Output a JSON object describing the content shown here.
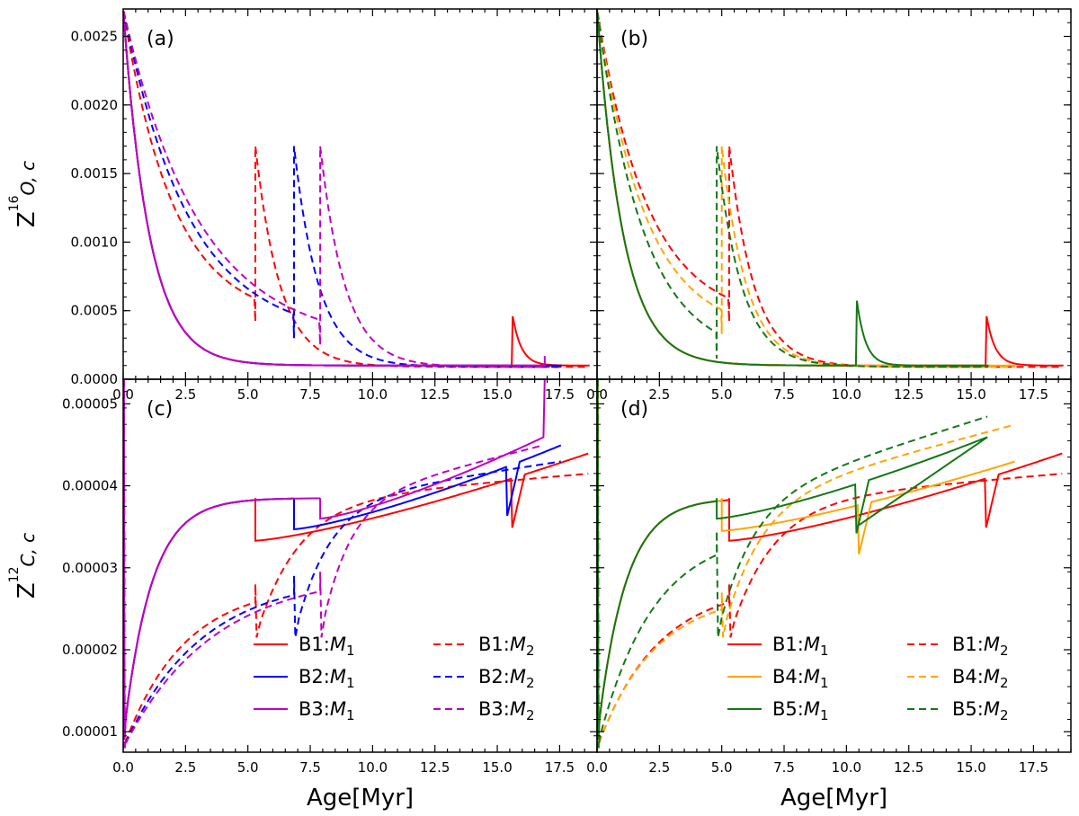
{
  "chart_data": [
    {
      "id": "a",
      "type": "line",
      "panel_label": "(a)",
      "ylabel": "Z_16O,c",
      "ylabel_display": {
        "base": "Z",
        "sup": "16",
        "sub": "O, c"
      },
      "xlabel": "",
      "xlim": [
        0,
        19.0
      ],
      "ylim": [
        0,
        0.0027
      ],
      "xticks": [
        "0.0",
        "2.5",
        "5.0",
        "7.5",
        "10.0",
        "12.5",
        "15.0",
        "17.5"
      ],
      "yticks": [
        "0.0000",
        "0.0005",
        "0.0010",
        "0.0015",
        "0.0020",
        "0.0025"
      ],
      "series": [
        {
          "name": "B1:M1",
          "color": "#ff0000",
          "dash": false,
          "kind": "o1",
          "end": 18.7,
          "bump_t": 15.6,
          "bump_h": 0.00048
        },
        {
          "name": "B1:M2",
          "color": "#ff0000",
          "dash": true,
          "kind": "o2",
          "t": 5.3,
          "end": 18.7,
          "pre": 0.00042
        },
        {
          "name": "B2:M1",
          "color": "#0000ff",
          "dash": false,
          "kind": "o1",
          "end": 17.6
        },
        {
          "name": "B2:M2",
          "color": "#0000ff",
          "dash": true,
          "kind": "o2",
          "t": 6.85,
          "end": 17.6,
          "pre": 0.0003
        },
        {
          "name": "B3:M1",
          "color": "#bf00bf",
          "dash": false,
          "kind": "o1",
          "end": 16.9,
          "spike_t": 16.9,
          "spike_h": 0.00017
        },
        {
          "name": "B3:M2",
          "color": "#bf00bf",
          "dash": true,
          "kind": "o2",
          "t": 7.9,
          "end": 16.9,
          "pre": 0.00025
        }
      ]
    },
    {
      "id": "b",
      "type": "line",
      "panel_label": "(b)",
      "ylabel": "",
      "xlabel": "",
      "xlim": [
        0,
        19.0
      ],
      "ylim": [
        0,
        0.0027
      ],
      "xticks": [
        "0.0",
        "2.5",
        "5.0",
        "7.5",
        "10.0",
        "12.5",
        "15.0",
        "17.5"
      ],
      "yticks": [],
      "series": [
        {
          "name": "B1:M1",
          "color": "#ff0000",
          "dash": false,
          "kind": "o1",
          "end": 18.7,
          "bump_t": 15.6,
          "bump_h": 0.00048
        },
        {
          "name": "B1:M2",
          "color": "#ff0000",
          "dash": true,
          "kind": "o2",
          "t": 5.3,
          "end": 18.7,
          "pre": 0.00042
        },
        {
          "name": "B4:M1",
          "color": "#ffa500",
          "dash": false,
          "kind": "o1",
          "end": 16.8
        },
        {
          "name": "B4:M2",
          "color": "#ffa500",
          "dash": true,
          "kind": "o2",
          "t": 5.0,
          "end": 16.8,
          "pre": 0.00033
        },
        {
          "name": "B5:M1",
          "color": "#147814",
          "dash": false,
          "kind": "o1",
          "end": 15.7,
          "bump_t": 10.4,
          "bump_h": 0.0006
        },
        {
          "name": "B5:M2",
          "color": "#147814",
          "dash": true,
          "kind": "o2",
          "t": 4.8,
          "end": 15.7,
          "pre": 0.00015
        }
      ]
    },
    {
      "id": "c",
      "type": "line",
      "panel_label": "(c)",
      "ylabel": "Z_12C,c",
      "ylabel_display": {
        "base": "Z",
        "sup": "12",
        "sub": "C, c"
      },
      "xlabel": "Age[Myr]",
      "xlim": [
        0,
        19.0
      ],
      "ylim": [
        7.5e-06,
        5.3e-05
      ],
      "xticks": [
        "0.0",
        "2.5",
        "5.0",
        "7.5",
        "10.0",
        "12.5",
        "15.0",
        "17.5"
      ],
      "yticks": [
        "0.00001",
        "0.00002",
        "0.00003",
        "0.00004",
        "0.00005"
      ],
      "series": [
        {
          "name": "B1:M1",
          "color": "#ff0000",
          "dash": false,
          "kind": "c1",
          "t": 5.3,
          "end": 18.7,
          "plateau": 3.33e-05,
          "jump": 10.2,
          "jumpv": 3.5e-05,
          "late": 15.6,
          "endv": 4.4e-05
        },
        {
          "name": "B1:M2",
          "color": "#ff0000",
          "dash": true,
          "kind": "c2",
          "t": 5.3,
          "end": 18.7,
          "pre": 2.8e-05,
          "endv": 4.15e-05
        },
        {
          "name": "B2:M1",
          "color": "#0000ff",
          "dash": false,
          "kind": "c1",
          "t": 6.85,
          "end": 17.6,
          "plateau": 3.47e-05,
          "late": 15.4,
          "endv": 4.5e-05
        },
        {
          "name": "B2:M2",
          "color": "#0000ff",
          "dash": true,
          "kind": "c2",
          "t": 6.85,
          "end": 17.6,
          "pre": 2.9e-05,
          "endv": 4.3e-05
        },
        {
          "name": "B3:M1",
          "color": "#bf00bf",
          "dash": false,
          "kind": "c1",
          "t": 7.9,
          "end": 16.9,
          "plateau": 3.6e-05,
          "endv": 4.6e-05,
          "spike_end": 5.3e-05
        },
        {
          "name": "B3:M2",
          "color": "#bf00bf",
          "dash": true,
          "kind": "c2",
          "t": 7.9,
          "end": 16.9,
          "pre": 2.95e-05,
          "endv": 4.5e-05
        }
      ],
      "legend": {
        "placement": "lower-right",
        "entries": [
          {
            "prefix": "B1:",
            "var": "M",
            "sub": "1",
            "color": "#ff0000",
            "dash": false
          },
          {
            "prefix": "B1:",
            "var": "M",
            "sub": "2",
            "color": "#ff0000",
            "dash": true
          },
          {
            "prefix": "B2:",
            "var": "M",
            "sub": "1",
            "color": "#0000ff",
            "dash": false
          },
          {
            "prefix": "B2:",
            "var": "M",
            "sub": "2",
            "color": "#0000ff",
            "dash": true
          },
          {
            "prefix": "B3:",
            "var": "M",
            "sub": "1",
            "color": "#bf00bf",
            "dash": false
          },
          {
            "prefix": "B3:",
            "var": "M",
            "sub": "2",
            "color": "#bf00bf",
            "dash": true
          }
        ]
      }
    },
    {
      "id": "d",
      "type": "line",
      "panel_label": "(d)",
      "ylabel": "",
      "xlabel": "Age[Myr]",
      "xlim": [
        0,
        19.0
      ],
      "ylim": [
        7.5e-06,
        5.3e-05
      ],
      "xticks": [
        "0.0",
        "2.5",
        "5.0",
        "7.5",
        "10.0",
        "12.5",
        "15.0",
        "17.5"
      ],
      "yticks": [],
      "series": [
        {
          "name": "B1:M1",
          "color": "#ff0000",
          "dash": false,
          "kind": "c1",
          "t": 5.3,
          "end": 18.7,
          "plateau": 3.33e-05,
          "late": 15.6,
          "endv": 4.4e-05
        },
        {
          "name": "B1:M2",
          "color": "#ff0000",
          "dash": true,
          "kind": "c2",
          "t": 5.3,
          "end": 18.7,
          "pre": 2.8e-05,
          "endv": 4.15e-05
        },
        {
          "name": "B4:M1",
          "color": "#ffa500",
          "dash": false,
          "kind": "c1",
          "t": 5.0,
          "end": 16.8,
          "plateau": 3.45e-05,
          "late": 10.5,
          "endv": 4.3e-05
        },
        {
          "name": "B4:M2",
          "color": "#ffa500",
          "dash": true,
          "kind": "c2",
          "t": 5.0,
          "end": 16.8,
          "pre": 2.7e-05,
          "endv": 4.75e-05
        },
        {
          "name": "B5:M1",
          "color": "#147814",
          "dash": false,
          "kind": "c1",
          "t": 4.8,
          "end": 15.7,
          "plateau": 3.6e-05,
          "late": 10.4,
          "endv": 4.6e-05,
          "spike_mid": 10.4
        },
        {
          "name": "B5:M2",
          "color": "#147814",
          "dash": true,
          "kind": "c2",
          "t": 4.8,
          "end": 15.7,
          "pre": 3.45e-05,
          "endv": 4.85e-05
        }
      ],
      "legend": {
        "placement": "lower-right",
        "entries": [
          {
            "prefix": "B1:",
            "var": "M",
            "sub": "1",
            "color": "#ff0000",
            "dash": false
          },
          {
            "prefix": "B1:",
            "var": "M",
            "sub": "2",
            "color": "#ff0000",
            "dash": true
          },
          {
            "prefix": "B4:",
            "var": "M",
            "sub": "1",
            "color": "#ffa500",
            "dash": false
          },
          {
            "prefix": "B4:",
            "var": "M",
            "sub": "2",
            "color": "#ffa500",
            "dash": true
          },
          {
            "prefix": "B5:",
            "var": "M",
            "sub": "1",
            "color": "#147814",
            "dash": false
          },
          {
            "prefix": "B5:",
            "var": "M",
            "sub": "2",
            "color": "#147814",
            "dash": true
          }
        ]
      }
    }
  ]
}
